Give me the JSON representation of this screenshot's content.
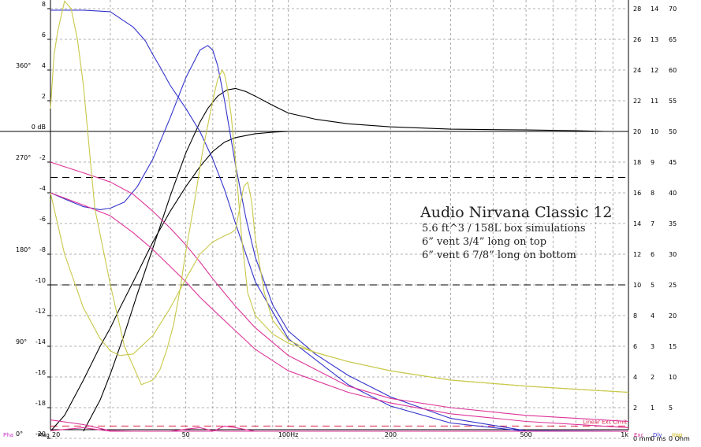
{
  "chart_data": {
    "type": "line",
    "x_scale": "log",
    "xlim": [
      20,
      1000
    ],
    "ylim_db": [
      -20,
      8
    ],
    "x_ticks": [
      {
        "value": 20,
        "label": "20"
      },
      {
        "value": 50,
        "label": "50"
      },
      {
        "value": 100,
        "label": "100Hz"
      },
      {
        "value": 200,
        "label": "200"
      },
      {
        "value": 500,
        "label": "500"
      },
      {
        "value": 1000,
        "label": "1k"
      }
    ],
    "x_gridlines": [
      20,
      30,
      40,
      50,
      60,
      70,
      80,
      90,
      100,
      200,
      300,
      400,
      500,
      600,
      700,
      800,
      900,
      1000
    ],
    "db_ticks": [
      {
        "value": 8,
        "label": "8"
      },
      {
        "value": 6,
        "label": "6"
      },
      {
        "value": 4,
        "label": "4"
      },
      {
        "value": 2,
        "label": "2"
      },
      {
        "value": 0,
        "label": "0 dB"
      },
      {
        "value": -2,
        "label": "-2"
      },
      {
        "value": -4,
        "label": "-4"
      },
      {
        "value": -6,
        "label": "-6"
      },
      {
        "value": -8,
        "label": "-8"
      },
      {
        "value": -10,
        "label": "-10"
      },
      {
        "value": -12,
        "label": "-12"
      },
      {
        "value": -14,
        "label": "-14"
      },
      {
        "value": -16,
        "label": "-16"
      },
      {
        "value": -18,
        "label": "-18"
      },
      {
        "value": -20,
        "label": "-20"
      }
    ],
    "phase_ticks": [
      {
        "db": 4,
        "label": "360°"
      },
      {
        "db": -2,
        "label": "270°"
      },
      {
        "db": -8,
        "label": "180°"
      },
      {
        "db": -14,
        "label": "90°"
      },
      {
        "db": -20,
        "label": "0°"
      }
    ],
    "right_axis_1": [
      {
        "db": 8,
        "label": "28"
      },
      {
        "db": 6,
        "label": "26"
      },
      {
        "db": 4,
        "label": "24"
      },
      {
        "db": 2,
        "label": "22"
      },
      {
        "db": 0,
        "label": "20"
      },
      {
        "db": -2,
        "label": "18"
      },
      {
        "db": -4,
        "label": "16"
      },
      {
        "db": -6,
        "label": "14"
      },
      {
        "db": -8,
        "label": "12"
      },
      {
        "db": -10,
        "label": "10"
      },
      {
        "db": -12,
        "label": "8"
      },
      {
        "db": -14,
        "label": "6"
      },
      {
        "db": -16,
        "label": "4"
      },
      {
        "db": -18,
        "label": "2"
      },
      {
        "db": -20,
        "label": "0 mm"
      }
    ],
    "right_axis_2": [
      {
        "db": 8,
        "label": "14"
      },
      {
        "db": 6,
        "label": "13"
      },
      {
        "db": 4,
        "label": "12"
      },
      {
        "db": 2,
        "label": "11"
      },
      {
        "db": 0,
        "label": "10"
      },
      {
        "db": -2,
        "label": "9"
      },
      {
        "db": -4,
        "label": "8"
      },
      {
        "db": -6,
        "label": "7"
      },
      {
        "db": -8,
        "label": "6"
      },
      {
        "db": -10,
        "label": "5"
      },
      {
        "db": -12,
        "label": "4"
      },
      {
        "db": -14,
        "label": "3"
      },
      {
        "db": -16,
        "label": "2"
      },
      {
        "db": -18,
        "label": "1"
      },
      {
        "db": -20,
        "label": "0 ms"
      }
    ],
    "right_axis_3": [
      {
        "db": 8,
        "label": "70"
      },
      {
        "db": 6,
        "label": "65"
      },
      {
        "db": 4,
        "label": "60"
      },
      {
        "db": 2,
        "label": "55"
      },
      {
        "db": 0,
        "label": "50"
      },
      {
        "db": -2,
        "label": "45"
      },
      {
        "db": -4,
        "label": "40"
      },
      {
        "db": -6,
        "label": "35"
      },
      {
        "db": -8,
        "label": "30"
      },
      {
        "db": -10,
        "label": "25"
      },
      {
        "db": -12,
        "label": "20"
      },
      {
        "db": -14,
        "label": "15"
      },
      {
        "db": -16,
        "label": "10"
      },
      {
        "db": -18,
        "label": "5"
      },
      {
        "db": -20,
        "label": "0 Ohm"
      }
    ],
    "bottom_labels": {
      "pha": "Pha",
      "mag": "Mag",
      "exc": "Exc",
      "dly": "Dly",
      "imp": "Imp"
    },
    "dashed_levels_db": [
      -3,
      -10
    ],
    "excursion_limit": {
      "label": "Linear Exc Limit",
      "db": -19.2,
      "color": "#dd2244"
    },
    "annotation": {
      "title": "Audio Nirvana Classic 12",
      "lines": [
        "5.6 ft^3 / 158L box simulations",
        "6” vent 3/4” long on top",
        "6” vent 6 7/8” long on bottom"
      ]
    },
    "colors": {
      "mag": "#000000",
      "phase": "#3333cc",
      "excursion": "#dd3399",
      "impedance": "#c8c84a",
      "pha_label": "#cc33cc",
      "exc_label": "#dd3399",
      "dly_label": "#3333cc",
      "imp_label": "#c8b400"
    },
    "series": [
      {
        "group": "mag",
        "x": [
          20,
          22,
          25,
          28,
          30,
          32,
          35,
          38,
          40,
          45,
          50,
          55,
          60,
          65,
          70,
          80,
          90,
          100,
          120,
          150,
          200,
          300
        ],
        "y": [
          -20,
          -18.5,
          -16.2,
          -14,
          -12.8,
          -11.5,
          -9.8,
          -8.2,
          -7.2,
          -5.2,
          -3.6,
          -2.3,
          -1.3,
          -0.7,
          -0.4,
          -0.15,
          -0.05,
          0,
          0,
          0,
          0,
          0
        ]
      },
      {
        "group": "mag",
        "x": [
          25,
          28,
          30,
          33,
          36,
          40,
          45,
          50,
          55,
          58,
          62,
          66,
          70,
          75,
          80,
          90,
          100,
          120,
          150,
          200,
          300,
          500,
          700,
          850
        ],
        "y": [
          -20,
          -17.5,
          -15.8,
          -13.2,
          -10.6,
          -7.6,
          -4.2,
          -1.4,
          0.6,
          1.5,
          2.3,
          2.7,
          2.8,
          2.6,
          2.3,
          1.7,
          1.2,
          0.8,
          0.5,
          0.3,
          0.15,
          0.1,
          0.05,
          0
        ]
      },
      {
        "group": "phase",
        "x": [
          20,
          25,
          30,
          35,
          38,
          40,
          42,
          45,
          50,
          55,
          60,
          65,
          70,
          80,
          100,
          150,
          200,
          300,
          500,
          1000
        ],
        "y": [
          7.9,
          7.9,
          7.8,
          6.8,
          5.9,
          5,
          4.2,
          3,
          1.5,
          0,
          -1.8,
          -3.8,
          -6,
          -9.8,
          -13.5,
          -16.5,
          -17.9,
          -19,
          -19.6,
          -20
        ]
      },
      {
        "group": "phase",
        "x": [
          20,
          22,
          25,
          28,
          30,
          33,
          36,
          40,
          45,
          50,
          55,
          58,
          60,
          62,
          65,
          70,
          75,
          80,
          90,
          100,
          120,
          150,
          200,
          300,
          500,
          1000
        ],
        "y": [
          -4,
          -4.4,
          -4.9,
          -5.1,
          -5,
          -4.6,
          -3.6,
          -1.8,
          0.9,
          3.5,
          5.3,
          5.6,
          5.3,
          4.3,
          2,
          -2.2,
          -5.6,
          -8.2,
          -11.3,
          -13,
          -14.5,
          -15.9,
          -17.3,
          -18.7,
          -19.5,
          -19.9
        ]
      },
      {
        "group": "excursion",
        "x": [
          20,
          25,
          30,
          35,
          40,
          45,
          50,
          55,
          60,
          70,
          80,
          100,
          150,
          200,
          300,
          500,
          1000
        ],
        "y": [
          -2,
          -2.7,
          -3.3,
          -4.1,
          -5.2,
          -6.3,
          -7.4,
          -8.5,
          -9.6,
          -11.4,
          -12.8,
          -14.6,
          -16.6,
          -17.4,
          -18,
          -18.5,
          -18.9
        ]
      },
      {
        "group": "excursion",
        "x": [
          20,
          25,
          30,
          35,
          40,
          45,
          50,
          55,
          60,
          70,
          80,
          100,
          150,
          200,
          300,
          500,
          1000
        ],
        "y": [
          -4,
          -4.8,
          -5.5,
          -6.6,
          -7.7,
          -8.8,
          -9.8,
          -10.8,
          -11.6,
          -13,
          -14.2,
          -15.6,
          -17,
          -17.7,
          -18.4,
          -18.9,
          -19.3
        ]
      },
      {
        "group": "excursion",
        "x": [
          20,
          25,
          30,
          35,
          40,
          45,
          50,
          55,
          60,
          65,
          70,
          80,
          100,
          150,
          200,
          300,
          500,
          1000
        ],
        "y": [
          -18.8,
          -19.1,
          -19.5,
          -19.8,
          -19.9,
          -19.7,
          -19.4,
          -19.3,
          -19.5,
          -19.8,
          -19.9,
          -19.95,
          -20,
          -20,
          -20,
          -20,
          -20,
          -20
        ]
      },
      {
        "group": "excursion",
        "x": [
          20,
          25,
          30,
          35,
          40,
          45,
          50,
          55,
          60,
          65,
          70,
          80,
          100,
          150,
          200,
          300,
          500,
          1000
        ],
        "y": [
          -19.5,
          -19.3,
          -19.6,
          -19.9,
          -20,
          -20,
          -20,
          -19.9,
          -19.6,
          -19.2,
          -19.3,
          -19.9,
          -20,
          -20,
          -20,
          -20,
          -20,
          -20
        ]
      },
      {
        "group": "impedance",
        "x": [
          20,
          20.5,
          21,
          22,
          23,
          24,
          25,
          27,
          30,
          33,
          37,
          40,
          42,
          44,
          46,
          48,
          50,
          53,
          56,
          60,
          62,
          64,
          65,
          66,
          67,
          68,
          70,
          73,
          76,
          80,
          90,
          100,
          120,
          150,
          200,
          300,
          500,
          700,
          1000
        ],
        "y": [
          1.5,
          5,
          6.5,
          8.5,
          8,
          6,
          3,
          -5,
          -10,
          -14,
          -16.5,
          -16.2,
          -15.5,
          -14.2,
          -12.6,
          -10.4,
          -7.8,
          -4.6,
          -1.3,
          2,
          3.4,
          4,
          3.7,
          3,
          2,
          1,
          -2,
          -7,
          -10.5,
          -12,
          -13.2,
          -13.8,
          -14.4,
          -15,
          -15.6,
          -16.2,
          -16.6,
          -16.8,
          -17
        ]
      },
      {
        "group": "impedance",
        "x": [
          20,
          22,
          25,
          28,
          30,
          32,
          35,
          40,
          45,
          50,
          55,
          60,
          65,
          68,
          70,
          72,
          74,
          76,
          78,
          80,
          85,
          90,
          100,
          120,
          150,
          200,
          300,
          500,
          700,
          1000
        ],
        "y": [
          -4,
          -8,
          -11.5,
          -13.5,
          -14.3,
          -14.6,
          -14.5,
          -13.3,
          -11.5,
          -9.6,
          -8,
          -7.2,
          -6.8,
          -6.6,
          -6.4,
          -5,
          -3.6,
          -3.3,
          -4.5,
          -7,
          -10.5,
          -12.3,
          -13.6,
          -14.4,
          -15,
          -15.6,
          -16.2,
          -16.6,
          -16.8,
          -17
        ]
      }
    ]
  }
}
